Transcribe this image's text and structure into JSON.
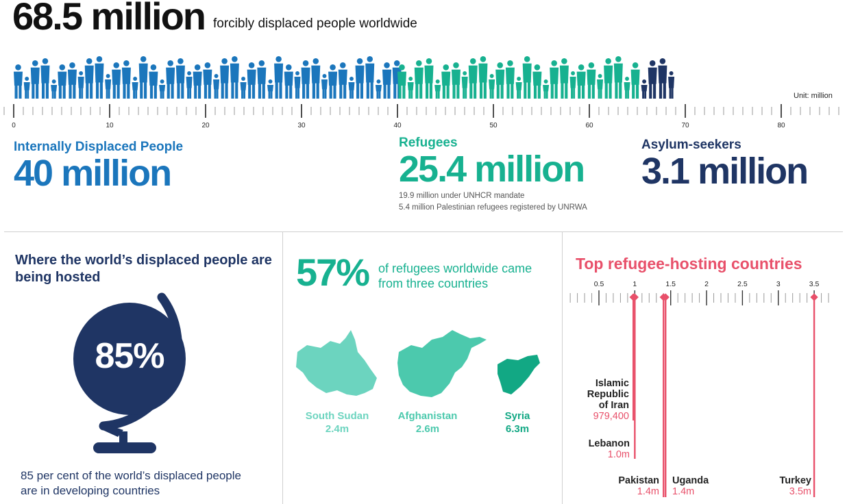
{
  "header": {
    "total": "68.5 million",
    "subtitle": "forcibly displaced people worldwide",
    "unit_label": "Unit: million"
  },
  "colors": {
    "idp": "#1b76bc",
    "refugees": "#17b190",
    "asylum": "#1f3564",
    "hosting": "#e8506a"
  },
  "chart_data": [
    {
      "type": "bar",
      "title": "68.5 million forcibly displaced people worldwide",
      "unit": "Unit: million",
      "xlim": [
        0,
        87
      ],
      "ticks": [
        0,
        10,
        20,
        30,
        40,
        50,
        60,
        70,
        80
      ],
      "segments": [
        {
          "name": "Internally Displaced People",
          "value": 40
        },
        {
          "name": "Refugees",
          "value": 25.4
        },
        {
          "name": "Asylum-seekers",
          "value": 3.1
        }
      ]
    },
    {
      "type": "scatter",
      "title": "Top refugee-hosting countries",
      "ticks": [
        0.5,
        1,
        1.5,
        2,
        2.5,
        3,
        3.5
      ],
      "xlim": [
        0.06,
        3.72
      ],
      "points": [
        {
          "name": "Islamic Republic of Iran",
          "value": 0.9794,
          "label": "979,400"
        },
        {
          "name": "Lebanon",
          "value": 1.0,
          "label": "1.0m"
        },
        {
          "name": "Pakistan",
          "value": 1.4,
          "label": "1.4m"
        },
        {
          "name": "Uganda",
          "value": 1.4,
          "label": "1.4m"
        },
        {
          "name": "Turkey",
          "value": 3.5,
          "label": "3.5m"
        }
      ]
    }
  ],
  "stats": {
    "idp": {
      "label": "Internally Displaced People",
      "value": "40 million"
    },
    "refugees": {
      "label": "Refugees",
      "value": "25.4 million",
      "note1": "19.9 million under UNHCR mandate",
      "note2": "5.4 million Palestinian refugees registered by UNRWA"
    },
    "asylum": {
      "label": "Asylum-seekers",
      "value": "3.1 million"
    }
  },
  "panel_hosted": {
    "title": "Where the world’s displaced people are being hosted",
    "percent": "85%",
    "note": "85 per cent of the world’s displaced people are in developing countries"
  },
  "panel_origin": {
    "percent": "57%",
    "desc": "of refugees worldwide came from three countries",
    "countries": [
      {
        "name": "South Sudan",
        "value": "2.4m",
        "color": "#6cd4bf"
      },
      {
        "name": "Afghanistan",
        "value": "2.6m",
        "color": "#4cc9ad"
      },
      {
        "name": "Syria",
        "value": "6.3m",
        "color": "#12a884"
      }
    ]
  }
}
